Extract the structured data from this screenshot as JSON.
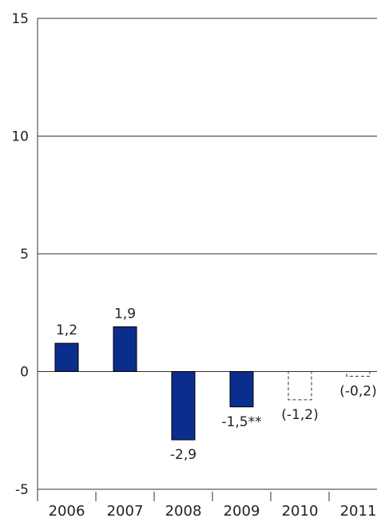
{
  "chart_data": {
    "type": "bar",
    "categories": [
      "2006",
      "2007",
      "2008",
      "2009",
      "2010",
      "2011"
    ],
    "values": [
      1.2,
      1.9,
      -2.9,
      -1.5,
      -1.2,
      -0.2
    ],
    "labels": [
      "1,2",
      "1,9",
      "-2,9",
      "-1,5**",
      "(-1,2)",
      "(-0,2)"
    ],
    "forecast": [
      false,
      false,
      false,
      false,
      true,
      true
    ],
    "ylim": [
      -5,
      15
    ],
    "yticks": [
      -5,
      0,
      5,
      10,
      15
    ],
    "ytick_labels": [
      "-5",
      "0",
      "5",
      "10",
      "15"
    ],
    "grid": true,
    "title": "",
    "xlabel": "",
    "ylabel": "",
    "colors": {
      "bar": "#0b2d8c",
      "bar_outline": "#000000",
      "forecast_outline": "#333333",
      "grid": "#333333",
      "axis": "#333333"
    }
  }
}
